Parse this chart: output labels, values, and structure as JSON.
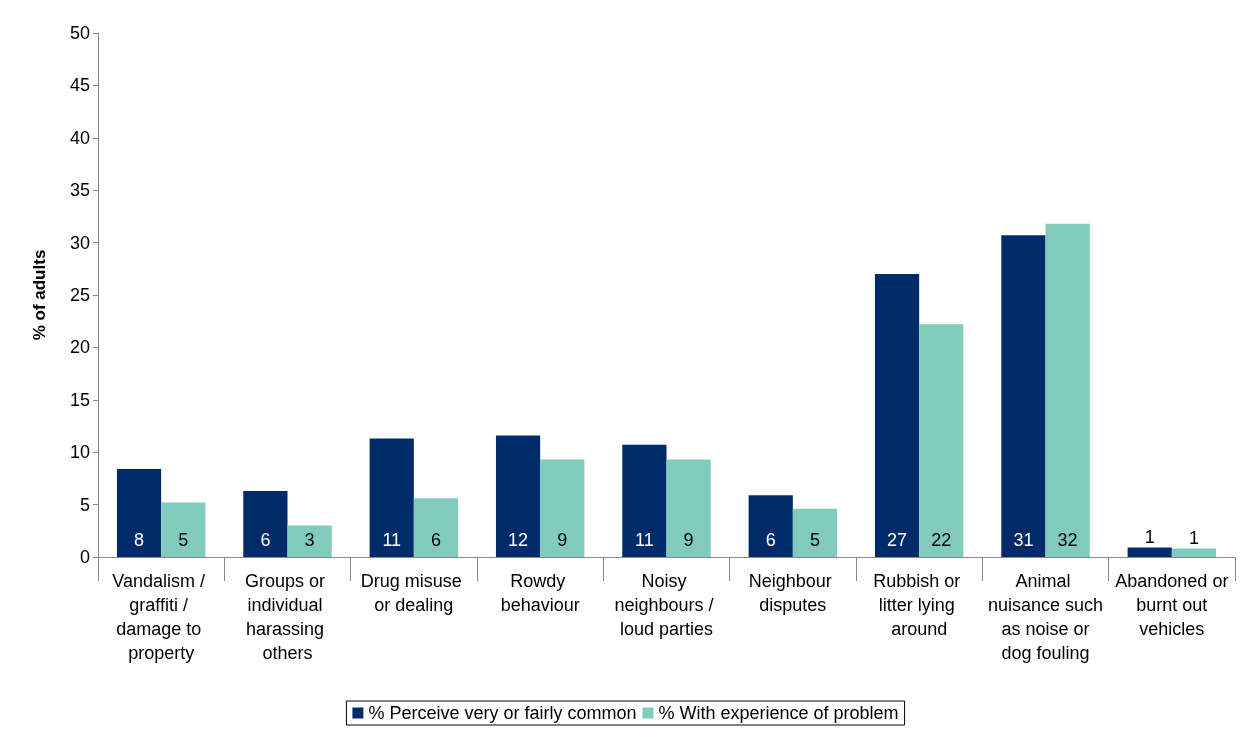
{
  "chart_data": {
    "type": "bar",
    "ylabel": "% of adults",
    "categories": [
      "Vandalism / graffiti / damage to property",
      "Groups or individual harassing others",
      "Drug misuse or dealing",
      "Rowdy behaviour",
      "Noisy neighbours / loud parties",
      "Neighbour disputes",
      "Rubbish or litter lying around",
      "Animal nuisance such as noise or dog fouling",
      "Abandoned or burnt out vehicles"
    ],
    "series": [
      {
        "name": "% Perceive very or fairly common",
        "color": "#002b6a",
        "values": [
          8.4,
          6.3,
          11.3,
          11.6,
          10.7,
          5.9,
          27.0,
          30.7,
          0.9
        ],
        "value_labels": [
          "8",
          "6",
          "11",
          "12",
          "11",
          "6",
          "27",
          "31",
          "1"
        ]
      },
      {
        "name": "% With experience of problem",
        "color": "#80cbbb",
        "values": [
          5.2,
          3.0,
          5.6,
          9.3,
          9.3,
          4.6,
          22.2,
          31.8,
          0.8
        ],
        "value_labels": [
          "5",
          "3",
          "6",
          "9",
          "9",
          "5",
          "22",
          "32",
          "1"
        ]
      }
    ],
    "ylim": [
      0,
      50
    ],
    "yticks": [
      0,
      5,
      10,
      15,
      20,
      25,
      30,
      35,
      40,
      45,
      50
    ],
    "grid": false,
    "legend": "bottom"
  }
}
